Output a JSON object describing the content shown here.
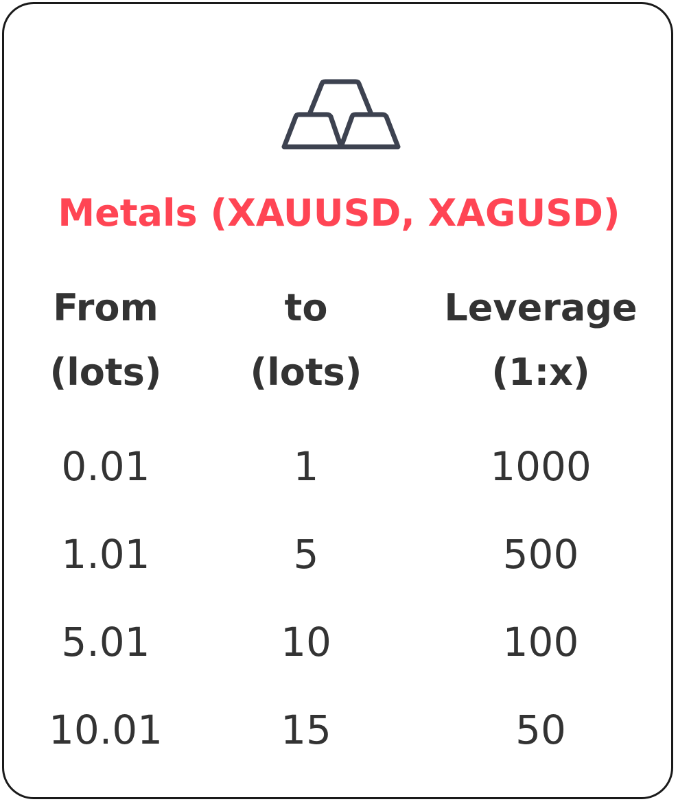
{
  "title": "Metals (XAUUSD, XAGUSD)",
  "icon": "gold-bars-icon",
  "colors": {
    "title": "#ff4554",
    "text": "#333333",
    "icon": "#3d4250",
    "border": "#1a1a1a"
  },
  "table": {
    "headers": [
      {
        "line1": "From",
        "line2": "(lots)"
      },
      {
        "line1": "to",
        "line2": "(lots)"
      },
      {
        "line1": "Leverage",
        "line2": "(1:x)"
      }
    ],
    "rows": [
      [
        "0.01",
        "1",
        "1000"
      ],
      [
        "1.01",
        "5",
        "500"
      ],
      [
        "5.01",
        "10",
        "100"
      ],
      [
        "10.01",
        "15",
        "50"
      ]
    ]
  }
}
